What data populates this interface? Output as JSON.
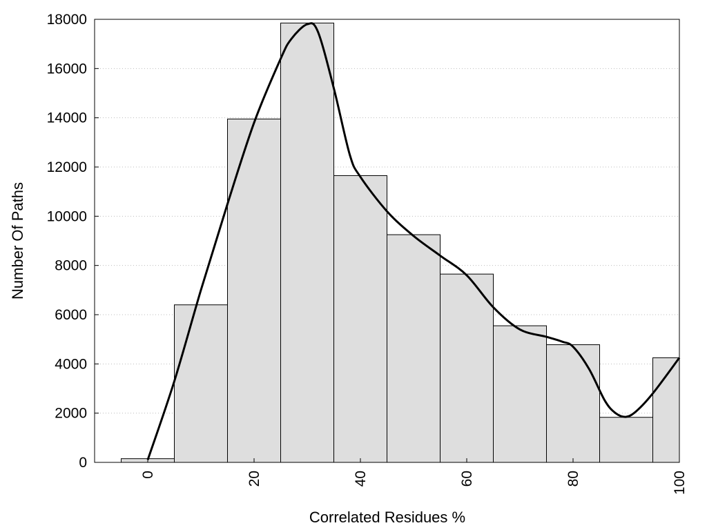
{
  "chart_data": {
    "type": "bar",
    "subtype": "histogram",
    "title": "",
    "xlabel": "Correlated Residues %",
    "ylabel": "Number Of Paths",
    "xlim": [
      -10,
      100
    ],
    "ylim": [
      0,
      18000
    ],
    "x_ticks": [
      "0",
      "20",
      "40",
      "60",
      "80",
      "100"
    ],
    "y_ticks": [
      "0",
      "2000",
      "4000",
      "6000",
      "8000",
      "10000",
      "12000",
      "14000",
      "16000",
      "18000"
    ],
    "grid": "horizontal dotted",
    "legend": "none",
    "bin_width": 10,
    "bins": [
      {
        "center": 0,
        "value": 150
      },
      {
        "center": 10,
        "value": 6400
      },
      {
        "center": 20,
        "value": 13950
      },
      {
        "center": 30,
        "value": 17850
      },
      {
        "center": 40,
        "value": 11650
      },
      {
        "center": 50,
        "value": 9250
      },
      {
        "center": 60,
        "value": 7650
      },
      {
        "center": 70,
        "value": 5550
      },
      {
        "center": 80,
        "value": 4780
      },
      {
        "center": 90,
        "value": 1830
      },
      {
        "center": 100,
        "value": 4250
      }
    ],
    "density_curve": {
      "x": [
        0,
        5,
        10,
        15,
        20,
        25,
        27,
        30,
        32,
        35,
        38,
        40,
        45,
        50,
        55,
        60,
        65,
        70,
        75,
        78,
        80,
        83,
        86,
        88,
        90,
        92,
        95,
        100
      ],
      "y": [
        100,
        3300,
        7000,
        10500,
        13800,
        16400,
        17200,
        17800,
        17500,
        15200,
        12500,
        11600,
        10200,
        9200,
        8400,
        7600,
        6300,
        5400,
        5100,
        4900,
        4700,
        3800,
        2500,
        2000,
        1850,
        2100,
        2800,
        4250
      ]
    },
    "colors": {
      "bar_fill": "#dedede",
      "bar_stroke": "#000000",
      "curve": "#000000",
      "grid": "#bbbbbb"
    }
  }
}
